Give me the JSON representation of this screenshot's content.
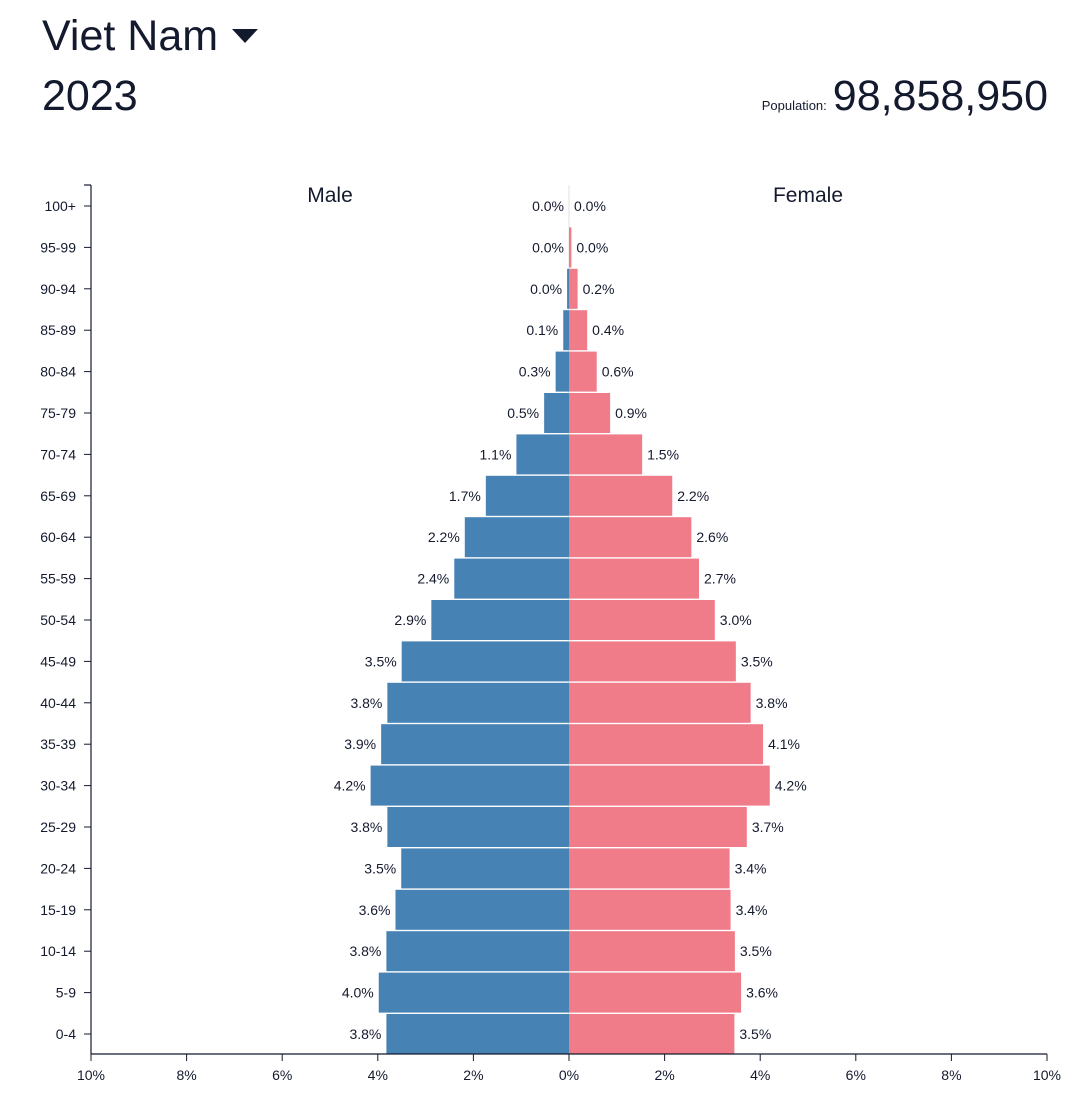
{
  "header": {
    "country": "Viet Nam",
    "year": "2023",
    "population_label": "Population:",
    "population_value": "98,858,950"
  },
  "colors": {
    "male": "#4682b4",
    "female": "#f07b89",
    "text": "#141a2e"
  },
  "chart_data": {
    "type": "bar",
    "orientation": "horizontal",
    "subtype": "population-pyramid",
    "categories": [
      "100+",
      "95-99",
      "90-94",
      "85-89",
      "80-84",
      "75-79",
      "70-74",
      "65-69",
      "60-64",
      "55-59",
      "50-54",
      "45-49",
      "40-44",
      "35-39",
      "30-34",
      "25-29",
      "20-24",
      "15-19",
      "10-14",
      "5-9",
      "0-4"
    ],
    "series": [
      {
        "name": "Male",
        "values": [
          0.0,
          0.0,
          0.04,
          0.12,
          0.28,
          0.52,
          1.1,
          1.74,
          2.18,
          2.4,
          2.88,
          3.5,
          3.8,
          3.93,
          4.15,
          3.8,
          3.51,
          3.63,
          3.82,
          3.98,
          3.82
        ],
        "labels": [
          "0.0%",
          "0.0%",
          "0.0%",
          "0.1%",
          "0.3%",
          "0.5%",
          "1.1%",
          "1.7%",
          "2.2%",
          "2.4%",
          "2.9%",
          "3.5%",
          "3.8%",
          "3.9%",
          "4.2%",
          "3.8%",
          "3.5%",
          "3.6%",
          "3.8%",
          "4.0%",
          "3.8%"
        ]
      },
      {
        "name": "Female",
        "values": [
          0.0,
          0.05,
          0.18,
          0.38,
          0.58,
          0.86,
          1.53,
          2.16,
          2.56,
          2.72,
          3.05,
          3.49,
          3.8,
          4.06,
          4.2,
          3.72,
          3.36,
          3.38,
          3.47,
          3.6,
          3.46
        ],
        "labels": [
          "0.0%",
          "0.0%",
          "0.2%",
          "0.4%",
          "0.6%",
          "0.9%",
          "1.5%",
          "2.2%",
          "2.6%",
          "2.7%",
          "3.0%",
          "3.5%",
          "3.8%",
          "4.1%",
          "4.2%",
          "3.7%",
          "3.4%",
          "3.4%",
          "3.5%",
          "3.6%",
          "3.5%"
        ]
      }
    ],
    "xlim": [
      -10,
      10
    ],
    "x_ticks": [
      "10%",
      "8%",
      "6%",
      "4%",
      "2%",
      "0%",
      "2%",
      "4%",
      "6%",
      "8%",
      "10%"
    ],
    "grid": false,
    "legend": "labels above each half (Male left, Female right)"
  }
}
